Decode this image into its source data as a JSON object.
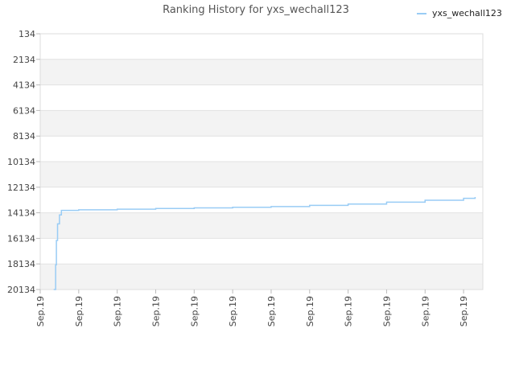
{
  "chart_data": {
    "type": "line",
    "title": "Ranking History for yxs_wechall123",
    "xlabel": "",
    "ylabel": "",
    "y_axis_inverted": true,
    "ylim": [
      134,
      20134
    ],
    "y_ticks": [
      134,
      2134,
      4134,
      6134,
      8134,
      10134,
      12134,
      14134,
      16134,
      18134,
      20134
    ],
    "x_tick_labels": [
      "Sep.19",
      "Sep.19",
      "Sep.19",
      "Sep.19",
      "Sep.19",
      "Sep.19",
      "Sep.19",
      "Sep.19",
      "Sep.19",
      "Sep.19",
      "Sep.19",
      "Sep.19"
    ],
    "grid": "horizontal bands",
    "legend_position": "top-right",
    "series": [
      {
        "name": "yxs_wechall123",
        "color": "#99ccf5",
        "x": [
          0.35,
          0.4,
          0.42,
          0.45,
          0.5,
          0.55,
          1.0,
          2.0,
          3.0,
          4.0,
          5.0,
          6.0,
          7.0,
          8.0,
          9.0,
          10.0,
          11.0,
          11.3
        ],
        "y": [
          20134,
          18200,
          16300,
          15000,
          14300,
          13950,
          13900,
          13850,
          13800,
          13750,
          13700,
          13650,
          13550,
          13450,
          13300,
          13150,
          13000,
          12900
        ]
      }
    ]
  }
}
